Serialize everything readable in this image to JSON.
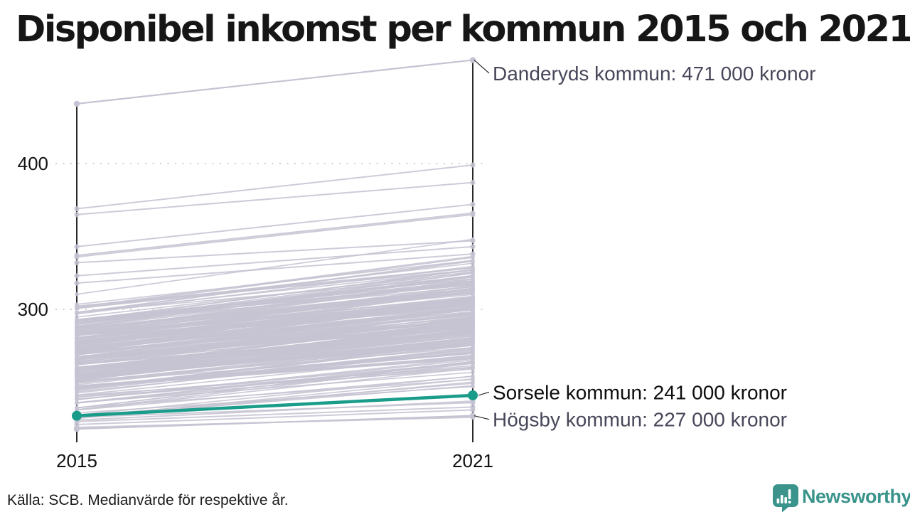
{
  "header": {
    "title": "Disponibel inkomst per kommun 2015 och 2021"
  },
  "footer": {
    "source": "Källa: SCB. Medianvärde för respektive år.",
    "brand": "Newsworthy"
  },
  "colors": {
    "accent_teal": "#1a9c8b",
    "line_gray": "#c6c3d2",
    "axis_black": "#111111",
    "grid_gray": "#cfcfcf",
    "label_slate": "#47475a",
    "label_black": "#0d0d0f",
    "brand_teal": "#3a948b"
  },
  "chart_data": {
    "type": "line",
    "subtype": "slope",
    "title": "Disponibel inkomst per kommun 2015 och 2021",
    "x": [
      "2015",
      "2021"
    ],
    "y_ticks": [
      400,
      300
    ],
    "y_unit": "000 kronor",
    "ylim": [
      215,
      480
    ],
    "grid": "dotted horizontal at y ticks",
    "series": [
      {
        "name": "Danderyds kommun",
        "label": "Danderyds kommun: 471 000 kronor",
        "values": [
          441,
          471
        ],
        "highlight": false
      },
      {
        "name": "Sorsele kommun",
        "label": "Sorsele kommun: 241 000 kronor",
        "values": [
          227,
          241
        ],
        "highlight": true
      },
      {
        "name": "Högsby kommun",
        "label": "Högsby kommun: 227 000 kronor",
        "values": [
          218,
          227
        ],
        "highlight": false
      }
    ],
    "background_lines": {
      "description": "unlabeled Swedish municipalities, gray slope lines (approximate band read from pixels)",
      "count": 245,
      "v2015_range": [
        221,
        312
      ],
      "growth": [
        17,
        31
      ],
      "prop": 0.08,
      "seed": 42,
      "outliers": [
        [
          369,
          399
        ],
        [
          365,
          387
        ],
        [
          343,
          372
        ],
        [
          337,
          366
        ],
        [
          336,
          365
        ],
        [
          332,
          347
        ],
        [
          323,
          343
        ],
        [
          318,
          338
        ],
        [
          226,
          236
        ],
        [
          224,
          237
        ],
        [
          223,
          233
        ],
        [
          221,
          231
        ],
        [
          219,
          226
        ]
      ]
    }
  }
}
